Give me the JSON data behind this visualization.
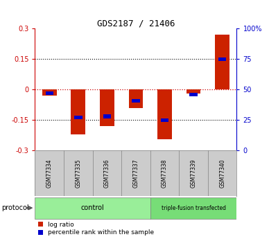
{
  "title": "GDS2187 / 21406",
  "samples": [
    "GSM77334",
    "GSM77335",
    "GSM77336",
    "GSM77337",
    "GSM77338",
    "GSM77339",
    "GSM77340"
  ],
  "log_ratio": [
    -0.03,
    -0.22,
    -0.18,
    -0.09,
    -0.245,
    -0.02,
    0.27
  ],
  "percentile_rank": [
    47,
    27,
    28,
    41,
    25,
    46,
    75
  ],
  "ylim_left": [
    -0.3,
    0.3
  ],
  "ylim_right": [
    0,
    100
  ],
  "yticks_left": [
    -0.3,
    -0.15,
    0,
    0.15,
    0.3
  ],
  "yticks_right": [
    0,
    25,
    50,
    75,
    100
  ],
  "ytick_labels_left": [
    "-0.3",
    "-0.15",
    "0",
    "0.15",
    "0.3"
  ],
  "ytick_labels_right": [
    "0",
    "25",
    "50",
    "75",
    "100%"
  ],
  "left_axis_color": "#cc0000",
  "right_axis_color": "#0000cc",
  "bar_color_log": "#cc2200",
  "bar_color_pct": "#0000cc",
  "hline_color_red": "#cc0000",
  "control_label": "control",
  "treatment_label": "triple-fusion transfected",
  "protocol_label": "protocol",
  "legend_log": "log ratio",
  "legend_pct": "percentile rank within the sample",
  "bg_color": "#ffffff",
  "sample_box_color": "#cccccc",
  "control_box_color": "#99ee99",
  "treatment_box_color": "#77dd77",
  "bar_width": 0.5
}
